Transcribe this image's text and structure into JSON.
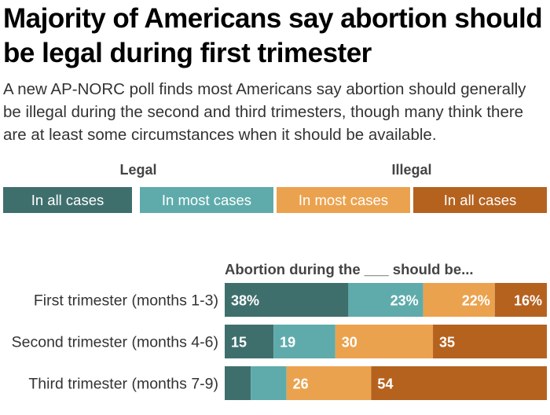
{
  "title": "Majority of Americans say abortion should be legal during first trimester",
  "subtitle": "A new AP-NORC poll finds most Americans say abortion should generally be illegal during the second and third trimesters, though many think there are at least some circumstances when it should be available.",
  "legend": {
    "groups": [
      "Legal",
      "Illegal"
    ],
    "entries": [
      "In all cases",
      "In most cases",
      "In most cases",
      "In all cases"
    ]
  },
  "colors": {
    "legal_all": "#3f6f6d",
    "legal_most": "#5fabab",
    "illegal_most": "#eba24e",
    "illegal_all": "#b5621f"
  },
  "chart_data": {
    "type": "bar",
    "orientation": "horizontal-stacked",
    "title": "Abortion during the ___ should be...",
    "categories": [
      "First trimester (months 1-3)",
      "Second trimester (months 4-6)",
      "Third trimester (months 7-9)"
    ],
    "series": [
      {
        "name": "Legal: In all cases",
        "values": [
          38,
          15,
          8
        ]
      },
      {
        "name": "Legal: In most cases",
        "values": [
          23,
          19,
          11
        ]
      },
      {
        "name": "Illegal: In most cases",
        "values": [
          22,
          30,
          26
        ]
      },
      {
        "name": "Illegal: In all cases",
        "values": [
          16,
          35,
          54
        ]
      }
    ],
    "labels": [
      [
        "38%",
        "23%",
        "22%",
        "16%"
      ],
      [
        "15",
        "19",
        "30",
        "35"
      ],
      [
        "",
        "",
        "26",
        "54"
      ]
    ],
    "xlim": [
      0,
      100
    ],
    "grid": false
  }
}
